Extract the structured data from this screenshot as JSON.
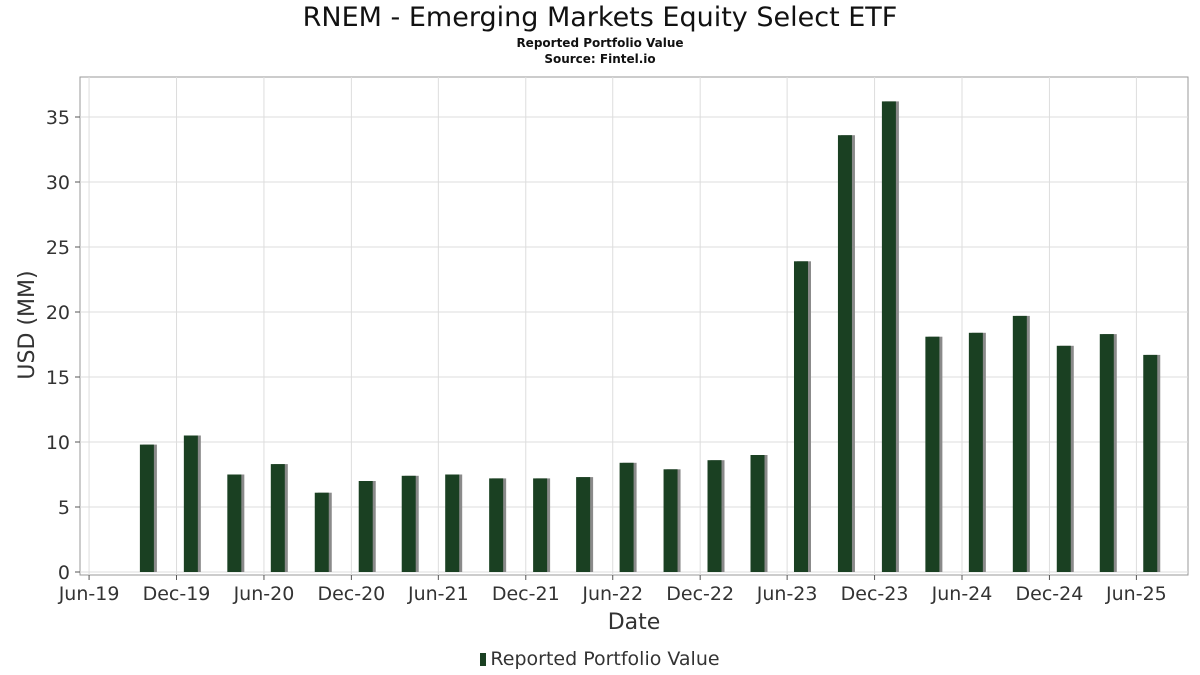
{
  "title": "RNEM - Emerging Markets Equity Select ETF",
  "subtitle": "Reported Portfolio Value",
  "source": "Source: Fintel.io",
  "colors": {
    "bar": "#1a4022",
    "shadow": "#8a8a8a",
    "grid": "#dddddd",
    "frame": "#999999"
  },
  "chart_data": {
    "type": "bar",
    "title": "RNEM - Emerging Markets Equity Select ETF",
    "subtitle": "Reported Portfolio Value",
    "xlabel": "Date",
    "ylabel": "USD (MM)",
    "ylim": [
      0,
      38
    ],
    "yticks": [
      0,
      5,
      10,
      15,
      20,
      25,
      30,
      35
    ],
    "xlim": [
      "2019-05-13",
      "2025-09-17"
    ],
    "xticks": [
      {
        "date": "2019-06-01",
        "label": "Jun-19"
      },
      {
        "date": "2019-12-01",
        "label": "Dec-19"
      },
      {
        "date": "2020-06-01",
        "label": "Jun-20"
      },
      {
        "date": "2020-12-01",
        "label": "Dec-20"
      },
      {
        "date": "2021-06-01",
        "label": "Jun-21"
      },
      {
        "date": "2021-12-01",
        "label": "Dec-21"
      },
      {
        "date": "2022-06-01",
        "label": "Jun-22"
      },
      {
        "date": "2022-12-01",
        "label": "Dec-22"
      },
      {
        "date": "2023-06-01",
        "label": "Jun-23"
      },
      {
        "date": "2023-12-01",
        "label": "Dec-23"
      },
      {
        "date": "2024-06-01",
        "label": "Jun-24"
      },
      {
        "date": "2024-12-01",
        "label": "Dec-24"
      },
      {
        "date": "2025-06-01",
        "label": "Jun-25"
      }
    ],
    "grid": true,
    "legend_position": "bottom-center",
    "series": [
      {
        "name": "Reported Portfolio Value",
        "x": [
          "2019-09-30",
          "2019-12-31",
          "2020-03-31",
          "2020-06-30",
          "2020-09-30",
          "2020-12-31",
          "2021-03-31",
          "2021-06-30",
          "2021-09-30",
          "2021-12-31",
          "2022-03-31",
          "2022-06-30",
          "2022-09-30",
          "2022-12-31",
          "2023-03-31",
          "2023-06-30",
          "2023-09-30",
          "2023-12-31",
          "2024-03-31",
          "2024-06-30",
          "2024-09-30",
          "2024-12-31",
          "2025-03-31",
          "2025-06-30"
        ],
        "values": [
          9.8,
          10.5,
          7.5,
          8.3,
          6.1,
          7.0,
          7.4,
          7.5,
          7.2,
          7.2,
          7.3,
          8.4,
          7.9,
          8.6,
          9.0,
          23.9,
          33.6,
          36.2,
          18.1,
          18.4,
          19.7,
          17.4,
          18.3,
          16.7
        ]
      }
    ]
  }
}
